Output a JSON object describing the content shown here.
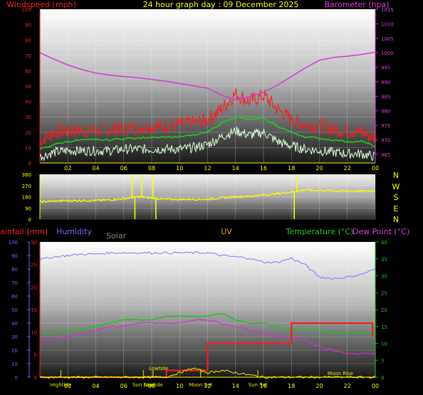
{
  "header": {
    "windspeed_label": "Windspeed (mph)",
    "title": "24 hour graph day : 09 December 2025",
    "barometer_label": "Barometer (hpa)"
  },
  "colors": {
    "wind_gust": "#ff1a1a",
    "wind_avg": "#17d017",
    "wind_low": "#d8ffd8",
    "barometer": "#d33cd3",
    "direction": "#ffff00",
    "humidity": "#7a7cff",
    "temperature": "#15c815",
    "dew_point": "#d030d0",
    "rainfall": "#ff1a1a",
    "solar": "#e8e800",
    "uv": "#ffffff",
    "left_axis_red": "#ff2020",
    "left_axis_blue": "#6a6aff",
    "right_axis_green": "#1ecf1e",
    "right_axis_magenta": "#e040e0"
  },
  "legend_row": {
    "rainfall": "Rainfall (mm)",
    "humidity": "Humidity",
    "solar": "Solar",
    "uv": "UV",
    "temperature": "Temperature (°C)",
    "dew_point": "Dew Point (°C)"
  },
  "compass": [
    "N",
    "W",
    "S",
    "E",
    "N"
  ],
  "chart_data": [
    {
      "type": "line",
      "panel": "wind_barometer",
      "x_ticks": [
        "02",
        "04",
        "06",
        "08",
        "10",
        "12",
        "14",
        "16",
        "18",
        "20",
        "22",
        "00"
      ],
      "x_hours": [
        0,
        1,
        2,
        3,
        4,
        5,
        6,
        7,
        8,
        9,
        10,
        11,
        12,
        13,
        14,
        15,
        16,
        17,
        18,
        19,
        20,
        21,
        22,
        23,
        24
      ],
      "y_left_ticks": [
        "100",
        "90",
        "80",
        "70",
        "60",
        "50",
        "40",
        "30",
        "20",
        "10",
        "0"
      ],
      "y_left_range": [
        0,
        100
      ],
      "y_right_ticks": [
        "1015",
        "1010",
        "1005",
        "1000",
        "995",
        "990",
        "985",
        "980",
        "975",
        "970",
        "965"
      ],
      "y_right_range": [
        962,
        1015
      ],
      "series": [
        {
          "name": "Windspeed gust",
          "color_key": "wind_gust",
          "values": [
            14,
            20,
            21,
            21,
            21,
            22,
            22,
            23,
            24,
            24,
            25,
            26,
            28,
            35,
            45,
            40,
            44,
            35,
            28,
            25,
            24,
            22,
            21,
            20,
            16
          ]
        },
        {
          "name": "Windspeed average",
          "color_key": "wind_avg",
          "values": [
            9,
            12,
            14,
            15,
            15,
            15,
            16,
            16,
            17,
            17,
            17,
            18,
            20,
            26,
            30,
            28,
            29,
            24,
            20,
            17,
            16,
            15,
            14,
            14,
            11
          ]
        },
        {
          "name": "Windspeed low",
          "color_key": "wind_low",
          "values": [
            4,
            7,
            8,
            8,
            8,
            8,
            9,
            9,
            9,
            9,
            9,
            10,
            12,
            17,
            21,
            18,
            20,
            14,
            11,
            9,
            8,
            7,
            6,
            6,
            4
          ]
        },
        {
          "name": "Barometer",
          "color_key": "barometer",
          "values": [
            1000,
            997.8,
            995.8,
            994.2,
            993,
            992.3,
            991.8,
            991.4,
            990.8,
            990.2,
            989.4,
            988.6,
            987.8,
            985.4,
            983.8,
            984.8,
            986.4,
            988.8,
            991.8,
            994.8,
            997.4,
            998.4,
            998.8,
            999.4,
            1000.2
          ]
        }
      ]
    },
    {
      "type": "scatter",
      "panel": "wind_direction",
      "y_ticks": [
        "360",
        "270",
        "180",
        "90",
        "0"
      ],
      "y_range": [
        0,
        360
      ],
      "series": [
        {
          "name": "Wind direction",
          "color_key": "direction",
          "values": [
            140,
            145,
            148,
            150,
            150,
            155,
            165,
            180,
            170,
            160,
            160,
            160,
            160,
            170,
            180,
            185,
            195,
            205,
            220,
            235,
            230,
            228,
            225,
            225,
            230
          ]
        }
      ]
    },
    {
      "type": "line",
      "panel": "atmospheric",
      "x_ticks": [
        "02",
        "04",
        "06",
        "08",
        "10",
        "12",
        "14",
        "16",
        "18",
        "20",
        "22",
        "00"
      ],
      "y_humidity_ticks": [
        "100",
        "90",
        "80",
        "70",
        "60",
        "50",
        "40",
        "30",
        "20",
        "10",
        "0"
      ],
      "y_humidity_range": [
        0,
        100
      ],
      "y_rain_ticks": [
        "30",
        "25",
        "20",
        "15",
        "10",
        "5",
        "0"
      ],
      "y_rain_range": [
        0,
        30
      ],
      "y_temp_ticks": [
        "40",
        "35",
        "30",
        "25",
        "20",
        "15",
        "10",
        "5",
        "0"
      ],
      "y_temp_range": [
        0,
        40
      ],
      "series": [
        {
          "name": "Humidity",
          "color_key": "humidity",
          "values": [
            87,
            89,
            90,
            91,
            91,
            92,
            92,
            92,
            92,
            92,
            92,
            92,
            92,
            90,
            89,
            88,
            85,
            85,
            88,
            83,
            74,
            73,
            74,
            76,
            80
          ]
        },
        {
          "name": "Temperature",
          "color_key": "temperature",
          "values": [
            13,
            13,
            14,
            14,
            15,
            16,
            17,
            17,
            17,
            18,
            18,
            18,
            18,
            19,
            17,
            16,
            16,
            15,
            14,
            14,
            14,
            13,
            13,
            13,
            13
          ]
        },
        {
          "name": "Dew Point",
          "color_key": "dew_point",
          "values": [
            11,
            11,
            12,
            13,
            14,
            15,
            15,
            16,
            16,
            16,
            16,
            17,
            17,
            16,
            15,
            14,
            13,
            12,
            12,
            11,
            9,
            8,
            7,
            7,
            7
          ]
        },
        {
          "name": "Rainfall",
          "color_key": "rainfall",
          "values": [
            0,
            0,
            0,
            0,
            0,
            0,
            0,
            0,
            0,
            0,
            1.5,
            1.5,
            1.5,
            1.5,
            7.5,
            7.5,
            7.5,
            7.5,
            12,
            12,
            12,
            12,
            12,
            12,
            12
          ],
          "steps": [
            [
              0,
              0
            ],
            [
              9.05,
              0
            ],
            [
              9.05,
              1.5
            ],
            [
              12,
              1.5
            ],
            [
              12,
              7.5
            ],
            [
              18,
              7.5
            ],
            [
              18,
              12
            ],
            [
              23.8,
              12
            ],
            [
              23.8,
              9
            ]
          ]
        },
        {
          "name": "Solar",
          "color_key": "solar",
          "values": [
            0,
            0,
            0,
            0,
            0,
            0,
            0,
            0,
            0,
            0,
            1,
            2,
            1,
            1.5,
            1,
            0.5,
            0,
            0,
            0,
            0,
            0,
            0,
            0,
            0,
            0
          ]
        },
        {
          "name": "UV",
          "color_key": "uv",
          "values": [
            0,
            0,
            0,
            0,
            0,
            0,
            0,
            0,
            0,
            0,
            0,
            0,
            0,
            0,
            0,
            0,
            0,
            0,
            0,
            0,
            0,
            0,
            0,
            0,
            0
          ]
        }
      ],
      "annotations": [
        {
          "label": "Lowtide",
          "hour": 8.5
        },
        {
          "label": "Hightide",
          "hour": 1.5
        },
        {
          "label": "Lowtide",
          "hour": 8.1
        },
        {
          "label": "Moon Set",
          "hour": 11.5
        },
        {
          "label": "Sun Rise",
          "hour": 7.4
        },
        {
          "label": "Sun Set",
          "hour": 15.6
        },
        {
          "label": "Moon Rise",
          "hour": 21.5
        }
      ]
    }
  ]
}
